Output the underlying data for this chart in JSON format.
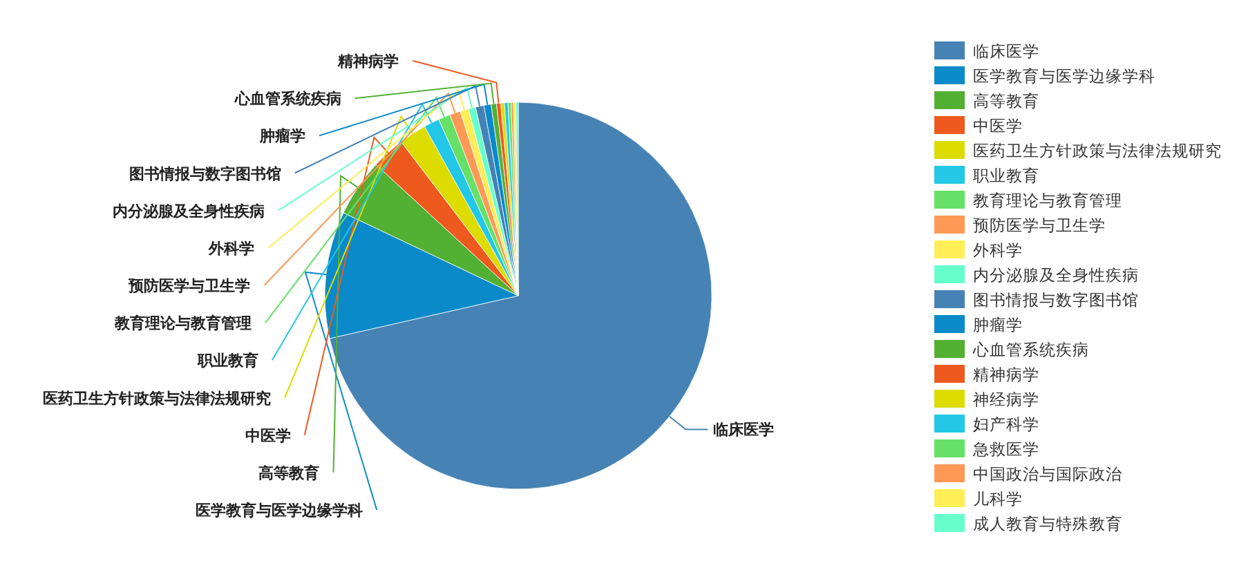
{
  "chart_data": {
    "type": "pie",
    "categories": [
      "临床医学",
      "医学教育与医学边缘学科",
      "高等教育",
      "中医学",
      "医药卫生方针政策与法律法规研究",
      "职业教育",
      "教育理论与教育管理",
      "预防医学与卫生学",
      "外科学",
      "内分泌腺及全身性疾病",
      "图书情报与数字图书馆",
      "肿瘤学",
      "心血管系统疾病",
      "精神病学",
      "神经病学",
      "妇产科学",
      "急救医学",
      "中国政治与国际政治",
      "儿科学",
      "成人教育与特殊教育"
    ],
    "values": [
      71.45,
      10.6,
      4.8,
      2.8,
      2.3,
      1.3,
      1.0,
      0.9,
      0.7,
      0.6,
      0.7,
      0.6,
      0.45,
      0.35,
      0.3,
      0.3,
      0.25,
      0.2,
      0.2,
      0.2
    ],
    "colors": [
      "#4682b4",
      "#0a8ac8",
      "#52b032",
      "#ee5a1e",
      "#dcdc00",
      "#22c8e6",
      "#66e066",
      "#ff9955",
      "#ffee55",
      "#66ffcc",
      "#4682b4",
      "#0a8ac8",
      "#52b032",
      "#ee5a1e",
      "#dcdc00",
      "#22c8e6",
      "#66e066",
      "#ff9955",
      "#ffee55",
      "#66ffcc"
    ],
    "annotations": [
      "临床医学",
      "医学教育与医学边缘学科",
      "高等教育",
      "中医学",
      "医药卫生方针政策与法律法规研究",
      "职业教育",
      "教育理论与教育管理",
      "预防医学与卫生学",
      "外科学",
      "内分泌腺及全身性疾病",
      "图书情报与数字图书馆",
      "肿瘤学",
      "心血管系统疾病",
      "精神病学"
    ],
    "legend": "right"
  }
}
